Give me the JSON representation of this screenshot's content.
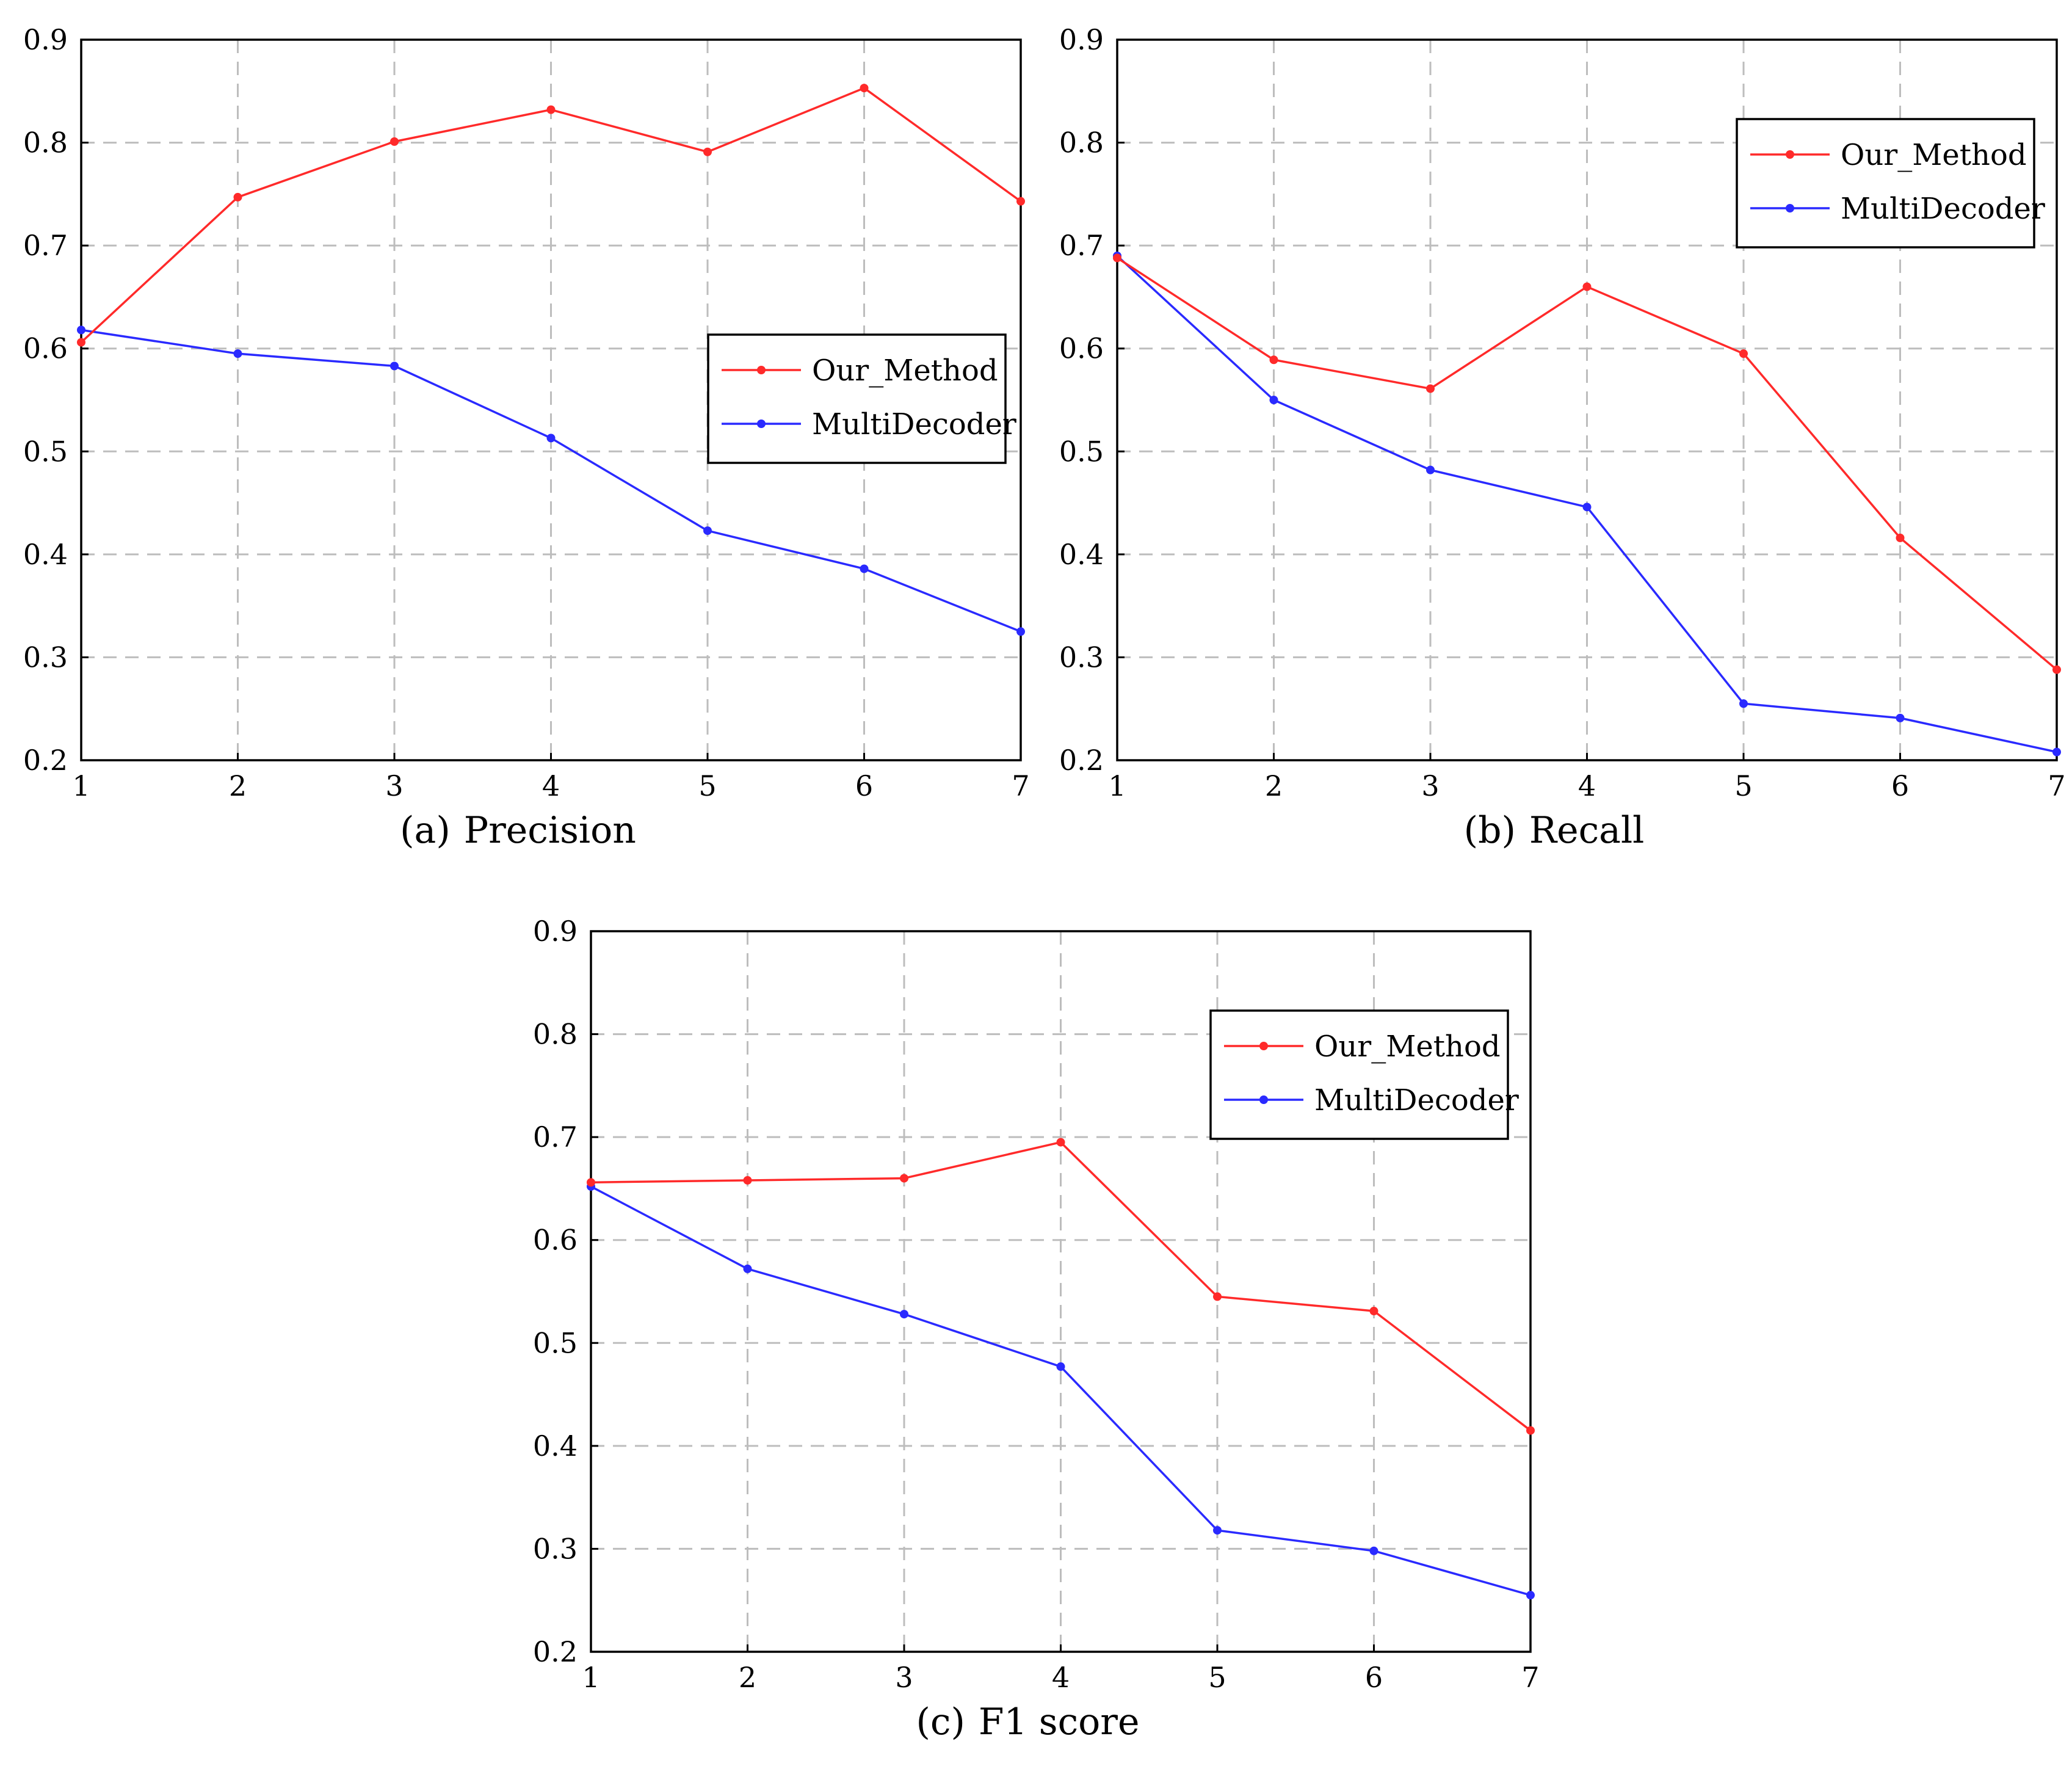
{
  "colors": {
    "series_red": "#ff2a2a",
    "series_blue": "#2a2aff",
    "grid": "#bdbdbd",
    "axis": "#000000"
  },
  "chart_data": [
    {
      "id": "precision",
      "type": "line",
      "subcaption_label": "(a)",
      "title": "Precision",
      "xlabel": "",
      "ylabel": "",
      "x": [
        1,
        2,
        3,
        4,
        5,
        6,
        7
      ],
      "xlim": [
        1,
        7
      ],
      "ylim": [
        0.2,
        0.9
      ],
      "yticks": [
        "0.2",
        "0.3",
        "0.4",
        "0.5",
        "0.6",
        "0.7",
        "0.8",
        "0.9"
      ],
      "xticks": [
        "1",
        "2",
        "3",
        "4",
        "5",
        "6",
        "7"
      ],
      "grid": true,
      "legend_position": "right-middle",
      "series": [
        {
          "name": "Our_Method",
          "color": "#ff2a2a",
          "values": [
            0.606,
            0.747,
            0.801,
            0.832,
            0.791,
            0.853,
            0.743
          ]
        },
        {
          "name": "MultiDecoder",
          "color": "#2a2aff",
          "values": [
            0.618,
            0.595,
            0.583,
            0.513,
            0.423,
            0.386,
            0.325
          ]
        }
      ]
    },
    {
      "id": "recall",
      "type": "line",
      "subcaption_label": "(b)",
      "title": "Recall",
      "xlabel": "",
      "ylabel": "",
      "x": [
        1,
        2,
        3,
        4,
        5,
        6,
        7
      ],
      "xlim": [
        1,
        7
      ],
      "ylim": [
        0.2,
        0.9
      ],
      "yticks": [
        "0.2",
        "0.3",
        "0.4",
        "0.5",
        "0.6",
        "0.7",
        "0.8",
        "0.9"
      ],
      "xticks": [
        "1",
        "2",
        "3",
        "4",
        "5",
        "6",
        "7"
      ],
      "grid": true,
      "legend_position": "top-right",
      "series": [
        {
          "name": "Our_Method",
          "color": "#ff2a2a",
          "values": [
            0.688,
            0.589,
            0.561,
            0.66,
            0.595,
            0.416,
            0.288
          ]
        },
        {
          "name": "MultiDecoder",
          "color": "#2a2aff",
          "values": [
            0.69,
            0.55,
            0.482,
            0.446,
            0.255,
            0.241,
            0.208
          ]
        }
      ]
    },
    {
      "id": "f1",
      "type": "line",
      "subcaption_label": "(c)",
      "title": "F1 score",
      "xlabel": "",
      "ylabel": "",
      "x": [
        1,
        2,
        3,
        4,
        5,
        6,
        7
      ],
      "xlim": [
        1,
        7
      ],
      "ylim": [
        0.2,
        0.9
      ],
      "yticks": [
        "0.2",
        "0.3",
        "0.4",
        "0.5",
        "0.6",
        "0.7",
        "0.8",
        "0.9"
      ],
      "xticks": [
        "1",
        "2",
        "3",
        "4",
        "5",
        "6",
        "7"
      ],
      "grid": true,
      "legend_position": "top-right",
      "series": [
        {
          "name": "Our_Method",
          "color": "#ff2a2a",
          "values": [
            0.656,
            0.658,
            0.66,
            0.695,
            0.545,
            0.531,
            0.415
          ]
        },
        {
          "name": "MultiDecoder",
          "color": "#2a2aff",
          "values": [
            0.652,
            0.572,
            0.528,
            0.477,
            0.318,
            0.298,
            0.255
          ]
        }
      ]
    }
  ]
}
